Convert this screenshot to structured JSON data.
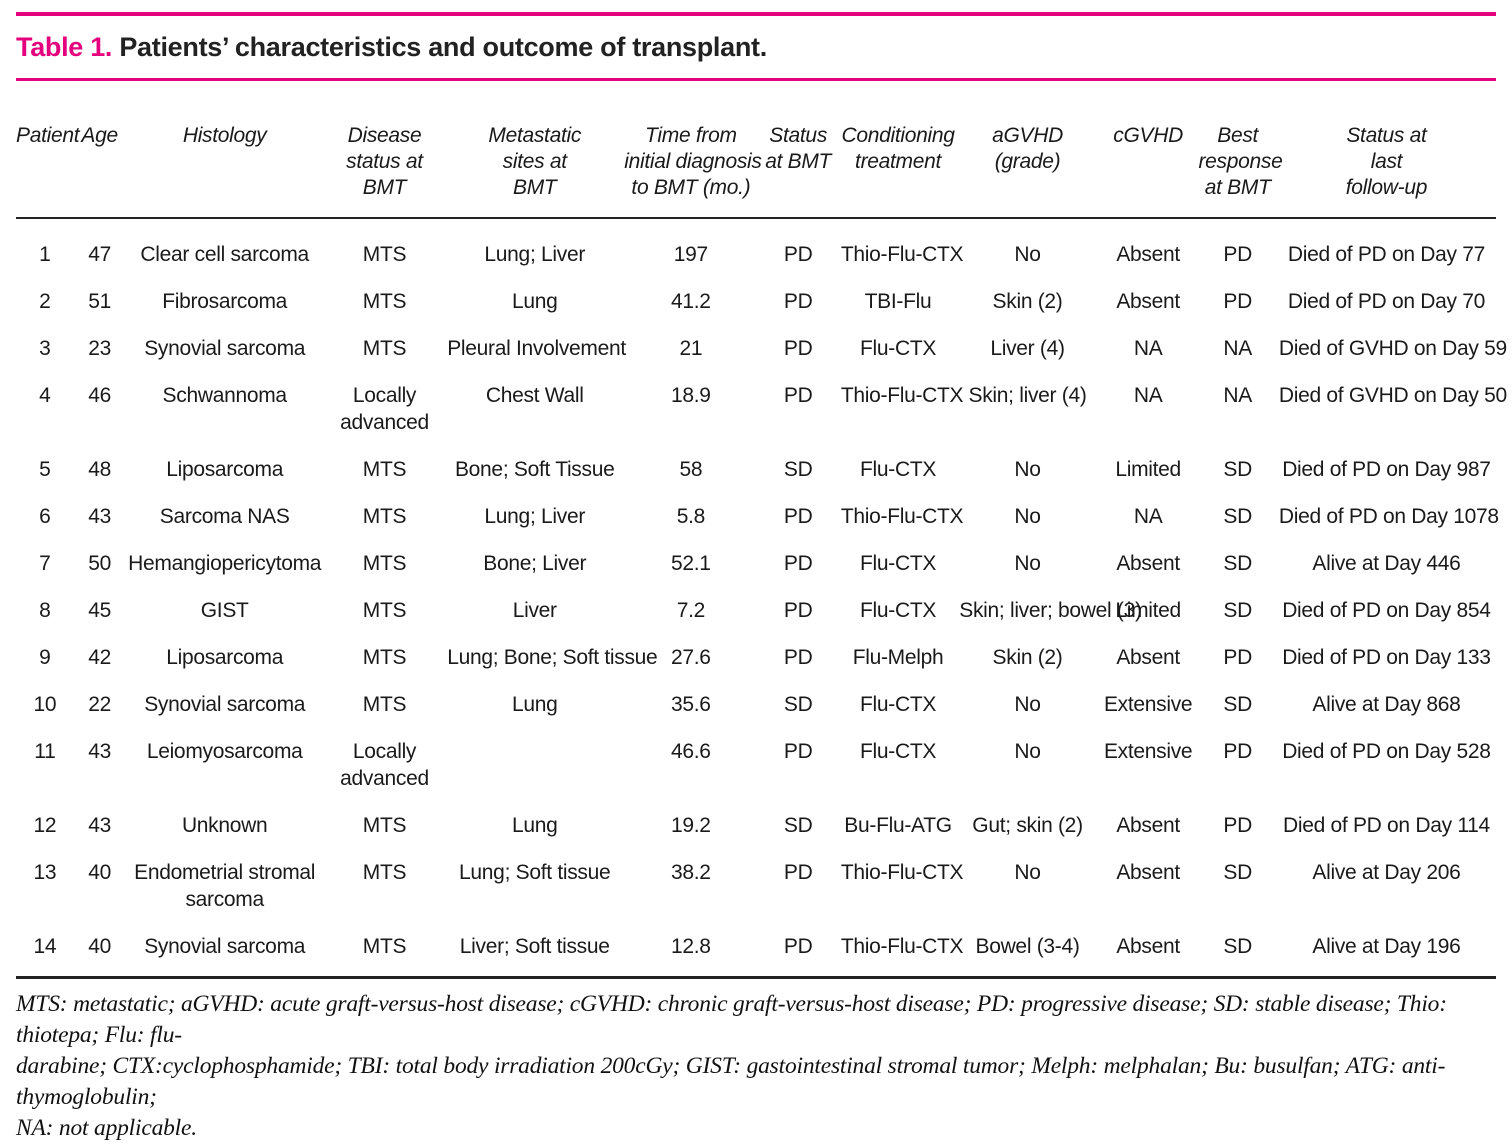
{
  "title": {
    "prefix": "Table 1.",
    "text": " Patients’ characteristics and outcome of transplant."
  },
  "colors": {
    "accent_pink": "#e5007d",
    "text": "#1a1a1a"
  },
  "table": {
    "columns": [
      {
        "label": "Patient",
        "lines": [
          "Patient"
        ]
      },
      {
        "label": "Age",
        "lines": [
          "Age"
        ]
      },
      {
        "label": "Histology",
        "lines": [
          "Histology"
        ]
      },
      {
        "label": "Disease status at BMT",
        "lines": [
          "Disease",
          "status at",
          "BMT"
        ]
      },
      {
        "label": "Metastatic sites at BMT",
        "lines": [
          "Metastatic",
          "sites at",
          "BMT"
        ]
      },
      {
        "label": "Time from initial diagnosis to BMT (mo.)",
        "lines": [
          "Time from",
          "initial diagnosis",
          "to BMT (mo.)"
        ]
      },
      {
        "label": "Status at BMT",
        "lines": [
          "Status",
          "at BMT"
        ]
      },
      {
        "label": "Conditioning treatment",
        "lines": [
          "Conditioning",
          "treatment"
        ]
      },
      {
        "label": "aGVHD (grade)",
        "lines": [
          "aGVHD",
          "(grade)"
        ]
      },
      {
        "label": "cGVHD",
        "lines": [
          "cGVHD"
        ]
      },
      {
        "label": "Best response at BMT",
        "lines": [
          "Best",
          "response",
          "at BMT"
        ]
      },
      {
        "label": "Status at last follow-up",
        "lines": [
          "Status at",
          "last",
          "follow-up"
        ]
      }
    ],
    "rows": [
      [
        "1",
        "47",
        "Clear cell sarcoma",
        "MTS",
        "Lung; Liver",
        "197",
        "PD",
        "Thio-Flu-CTX",
        "No",
        "Absent",
        "PD",
        "Died of PD on Day 77"
      ],
      [
        "2",
        "51",
        "Fibrosarcoma",
        "MTS",
        "Lung",
        "41.2",
        "PD",
        "TBI-Flu",
        "Skin (2)",
        "Absent",
        "PD",
        "Died of PD on Day 70"
      ],
      [
        "3",
        "23",
        "Synovial sarcoma",
        "MTS",
        "Pleural Involvement",
        "21",
        "PD",
        "Flu-CTX",
        "Liver (4)",
        "NA",
        "NA",
        "Died of GVHD on Day 59"
      ],
      [
        "4",
        "46",
        "Schwannoma",
        "Locally advanced",
        "Chest Wall",
        "18.9",
        "PD",
        "Thio-Flu-CTX",
        "Skin; liver (4)",
        "NA",
        "NA",
        "Died of GVHD on Day 50"
      ],
      [
        "5",
        "48",
        "Liposarcoma",
        "MTS",
        "Bone; Soft Tissue",
        "58",
        "SD",
        "Flu-CTX",
        "No",
        "Limited",
        "SD",
        "Died of PD on Day 987"
      ],
      [
        "6",
        "43",
        "Sarcoma NAS",
        "MTS",
        "Lung; Liver",
        "5.8",
        "PD",
        "Thio-Flu-CTX",
        "No",
        "NA",
        "SD",
        "Died of PD on Day 1078"
      ],
      [
        "7",
        "50",
        "Hemangiopericytoma",
        "MTS",
        "Bone; Liver",
        "52.1",
        "PD",
        "Flu-CTX",
        "No",
        "Absent",
        "SD",
        "Alive at Day 446"
      ],
      [
        "8",
        "45",
        "GIST",
        "MTS",
        "Liver",
        "7.2",
        "PD",
        "Flu-CTX",
        "Skin; liver; bowel (3)",
        "Limited",
        "SD",
        "Died of PD on Day 854"
      ],
      [
        "9",
        "42",
        "Liposarcoma",
        "MTS",
        "Lung; Bone; Soft tissue",
        "27.6",
        "PD",
        "Flu-Melph",
        "Skin (2)",
        "Absent",
        "PD",
        "Died of PD on Day 133"
      ],
      [
        "10",
        "22",
        "Synovial sarcoma",
        "MTS",
        "Lung",
        "35.6",
        "SD",
        "Flu-CTX",
        "No",
        "Extensive",
        "SD",
        "Alive at Day 868"
      ],
      [
        "11",
        "43",
        "Leiomyosarcoma",
        "Locally advanced",
        "",
        "46.6",
        "PD",
        "Flu-CTX",
        "No",
        "Extensive",
        "PD",
        "Died of PD on Day 528"
      ],
      [
        "12",
        "43",
        "Unknown",
        "MTS",
        "Lung",
        "19.2",
        "SD",
        "Bu-Flu-ATG",
        "Gut; skin (2)",
        "Absent",
        "PD",
        "Died of PD on Day 114"
      ],
      [
        "13",
        "40",
        "Endometrial stromal sarcoma",
        "MTS",
        "Lung; Soft tissue",
        "38.2",
        "PD",
        "Thio-Flu-CTX",
        "No",
        "Absent",
        "SD",
        "Alive at Day 206"
      ],
      [
        "14",
        "40",
        "Synovial sarcoma",
        "MTS",
        "Liver; Soft tissue",
        "12.8",
        "PD",
        "Thio-Flu-CTX",
        "Bowel (3-4)",
        "Absent",
        "SD",
        "Alive at Day 196"
      ]
    ]
  },
  "footnote": {
    "lines": [
      "MTS: metastatic; aGVHD: acute graft-versus-host disease; cGVHD: chronic graft-versus-host disease; PD: progressive disease; SD: stable disease; Thio: thiotepa; Flu: flu-",
      "darabine; CTX:cyclophosphamide; TBI: total body irradiation 200cGy; GIST: gastointestinal stromal tumor; Melph: melphalan; Bu: busulfan; ATG: anti-thymoglobulin;",
      "NA: not applicable."
    ]
  }
}
